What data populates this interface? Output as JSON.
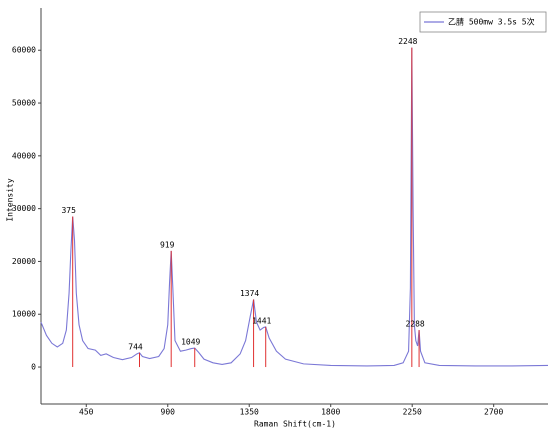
{
  "chart_data": {
    "type": "line",
    "x_label": "Raman Shift(cm-1)",
    "y_label": "Intensity",
    "xlim": [
      200,
      3000
    ],
    "ylim": [
      -7000,
      68000
    ],
    "xticks": [
      450,
      900,
      1350,
      1800,
      2250,
      2700
    ],
    "yticks": [
      0,
      10000,
      20000,
      30000,
      40000,
      50000,
      60000
    ],
    "legend": "top-right",
    "series": [
      {
        "name": "乙腈 500mw 3.5s 5次",
        "color": "#7b78d6",
        "x": [
          200,
          230,
          260,
          290,
          320,
          340,
          355,
          365,
          375,
          385,
          395,
          410,
          430,
          460,
          500,
          530,
          560,
          600,
          650,
          700,
          730,
          744,
          760,
          800,
          850,
          880,
          900,
          910,
          919,
          928,
          940,
          970,
          1000,
          1030,
          1049,
          1070,
          1100,
          1150,
          1200,
          1250,
          1300,
          1330,
          1355,
          1374,
          1390,
          1410,
          1430,
          1441,
          1460,
          1500,
          1550,
          1650,
          1800,
          2000,
          2150,
          2200,
          2230,
          2240,
          2248,
          2255,
          2262,
          2270,
          2280,
          2288,
          2296,
          2320,
          2400,
          2600,
          2800,
          3000
        ],
        "values": [
          8500,
          6000,
          4500,
          3800,
          4500,
          7000,
          14000,
          22000,
          28500,
          24000,
          14000,
          8000,
          5000,
          3500,
          3200,
          2200,
          2500,
          1800,
          1400,
          1800,
          2500,
          2700,
          2000,
          1600,
          2000,
          3500,
          8000,
          16000,
          22000,
          15000,
          5000,
          3000,
          3200,
          3500,
          3600,
          2800,
          1500,
          800,
          500,
          800,
          2500,
          5000,
          9500,
          12800,
          8500,
          7000,
          7500,
          7600,
          5500,
          3000,
          1500,
          600,
          300,
          200,
          300,
          800,
          3000,
          15000,
          60500,
          30000,
          8000,
          5000,
          4000,
          7000,
          3000,
          800,
          300,
          200,
          200,
          300
        ]
      }
    ],
    "peaks": {
      "color": "#e03030",
      "x": [
        375,
        744,
        919,
        1049,
        1374,
        1441,
        2248,
        2288
      ],
      "values": [
        28500,
        2700,
        22000,
        3600,
        12800,
        7600,
        60500,
        7000
      ]
    }
  }
}
